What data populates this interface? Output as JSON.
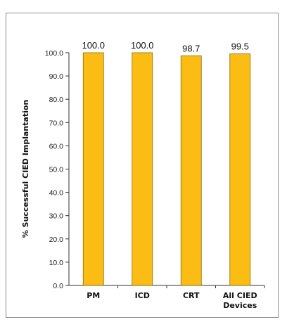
{
  "chart_data": {
    "type": "bar",
    "title": "",
    "ylabel": "% Successful CIED Implantation",
    "xlabel": "",
    "categories": [
      [
        "PM"
      ],
      [
        "ICD"
      ],
      [
        "CRT"
      ],
      [
        "All CIED",
        "Devices"
      ]
    ],
    "values": [
      100.0,
      100.0,
      98.7,
      99.5
    ],
    "data_labels": [
      "100.0",
      "100.0",
      "98.7",
      "99.5"
    ],
    "ylim": [
      0,
      100
    ],
    "yticks": [
      0,
      10,
      20,
      30,
      40,
      50,
      60,
      70,
      80,
      90,
      100
    ],
    "ytick_labels": [
      "0.0",
      "10.0",
      "20.0",
      "30.0",
      "40.0",
      "50.0",
      "60.0",
      "70.0",
      "80.0",
      "90.0",
      "100.0"
    ],
    "grid": false,
    "legend": "none",
    "colors": {
      "bar_fill": "#fbbd13",
      "bar_stroke": "#8a6a08",
      "axis": "#333333"
    }
  }
}
